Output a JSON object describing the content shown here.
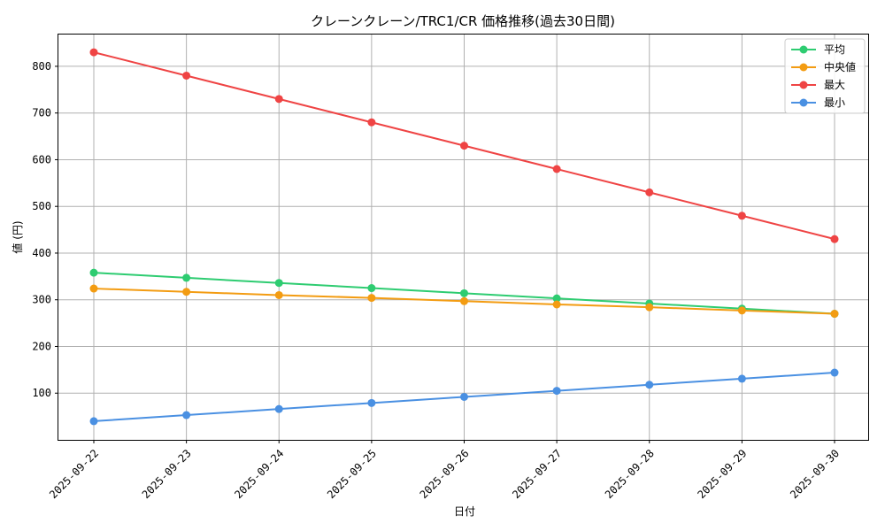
{
  "chart_data": {
    "type": "line",
    "title": "クレーンクレーン/TRC1/CR 価格推移(過去30日間)",
    "xlabel": "日付",
    "ylabel": "値 (円)",
    "categories": [
      "2025-09-22",
      "2025-09-23",
      "2025-09-24",
      "2025-09-25",
      "2025-09-26",
      "2025-09-27",
      "2025-09-28",
      "2025-09-29",
      "2025-09-30"
    ],
    "ylim": [
      0,
      870
    ],
    "yticks": [
      100,
      200,
      300,
      400,
      500,
      600,
      700,
      800
    ],
    "grid": true,
    "legend_position": "top-right",
    "series": [
      {
        "name": "平均",
        "color": "#2ecc71",
        "values": [
          358,
          347,
          336,
          325,
          314,
          303,
          292,
          281,
          270
        ]
      },
      {
        "name": "中央値",
        "color": "#f39c12",
        "values": [
          324,
          317,
          310,
          304,
          297,
          290,
          284,
          277,
          270
        ]
      },
      {
        "name": "最大",
        "color": "#ef4444",
        "values": [
          830,
          780,
          730,
          680,
          630,
          580,
          530,
          480,
          430
        ]
      },
      {
        "name": "最小",
        "color": "#4a90e2",
        "values": [
          40,
          53,
          66,
          79,
          92,
          105,
          118,
          131,
          144
        ]
      }
    ]
  }
}
